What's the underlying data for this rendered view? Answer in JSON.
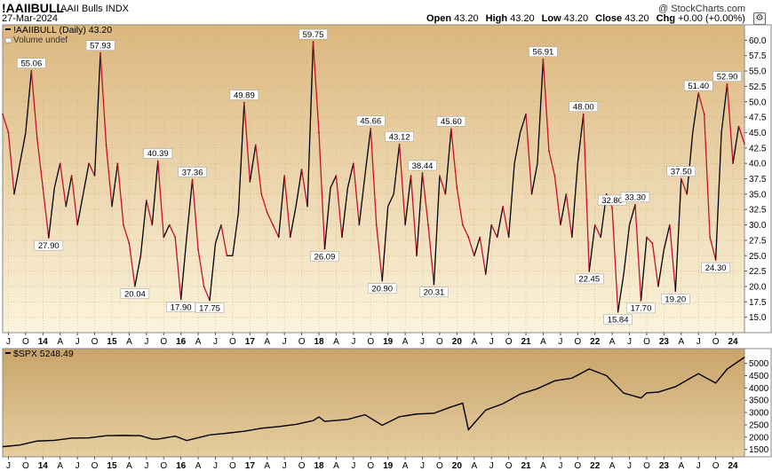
{
  "header": {
    "symbol": "!AAIIBULL",
    "description": "AAII Bulls INDX",
    "date": "27-Mar-2024",
    "copyright": "@ StockCharts.com",
    "ohlc": [
      {
        "key": "Open",
        "value": "43.20"
      },
      {
        "key": "High",
        "value": "43.20"
      },
      {
        "key": "Low",
        "value": "43.20"
      },
      {
        "key": "Close",
        "value": "43.20"
      },
      {
        "key": "Chg",
        "value": "+0.00 (+0.00%)"
      }
    ],
    "settings_icon": "gear-icon"
  },
  "chart_data": [
    {
      "type": "line",
      "legend": "!AAIIBULL (Daily) 43.20",
      "legend_volume": "Volume undef",
      "ylim": [
        12.5,
        62.5
      ],
      "y_ticks": [
        "15.0",
        "17.5",
        "20.0",
        "22.5",
        "25.0",
        "27.5",
        "30.0",
        "32.5",
        "35.0",
        "37.5",
        "40.0",
        "42.5",
        "45.0",
        "47.5",
        "50.0",
        "52.5",
        "55.0",
        "57.5",
        "60.0"
      ],
      "x_ticks": [
        "J",
        "O",
        "14",
        "A",
        "J",
        "O",
        "15",
        "A",
        "J",
        "O",
        "16",
        "A",
        "J",
        "O",
        "17",
        "A",
        "J",
        "O",
        "18",
        "A",
        "J",
        "O",
        "19",
        "A",
        "J",
        "O",
        "20",
        "A",
        "J",
        "O",
        "21",
        "A",
        "J",
        "O",
        "22",
        "A",
        "J",
        "O",
        "23",
        "A",
        "J",
        "O",
        "24"
      ],
      "x_range": [
        "2013-06",
        "2024-03"
      ],
      "background": [
        "#dcb77e",
        "#fbf4dc"
      ],
      "colors": {
        "up": "#000000",
        "down": "#c8102e"
      },
      "annotations": [
        {
          "x": "2013-11",
          "y": 55.06,
          "label": "55.06"
        },
        {
          "x": "2014-02",
          "y": 27.9,
          "label": "27.90"
        },
        {
          "x": "2014-11",
          "y": 57.93,
          "label": "57.93"
        },
        {
          "x": "2015-05",
          "y": 20.04,
          "label": "20.04"
        },
        {
          "x": "2015-09",
          "y": 40.39,
          "label": "40.39"
        },
        {
          "x": "2016-01",
          "y": 17.9,
          "label": "17.90"
        },
        {
          "x": "2016-03",
          "y": 37.36,
          "label": "37.36"
        },
        {
          "x": "2016-06",
          "y": 17.75,
          "label": "17.75"
        },
        {
          "x": "2016-12",
          "y": 49.89,
          "label": "49.89"
        },
        {
          "x": "2017-12",
          "y": 59.75,
          "label": "59.75"
        },
        {
          "x": "2018-02",
          "y": 26.09,
          "label": "26.09"
        },
        {
          "x": "2018-10",
          "y": 45.66,
          "label": "45.66"
        },
        {
          "x": "2018-12",
          "y": 20.9,
          "label": "20.90"
        },
        {
          "x": "2019-03",
          "y": 43.12,
          "label": "43.12"
        },
        {
          "x": "2019-07",
          "y": 38.44,
          "label": "38.44"
        },
        {
          "x": "2019-09",
          "y": 20.31,
          "label": "20.31"
        },
        {
          "x": "2019-12",
          "y": 45.6,
          "label": "45.60"
        },
        {
          "x": "2021-04",
          "y": 56.91,
          "label": "56.91"
        },
        {
          "x": "2021-11",
          "y": 48.0,
          "label": "48.00"
        },
        {
          "x": "2021-12",
          "y": 22.45,
          "label": "22.45"
        },
        {
          "x": "2022-04",
          "y": 32.8,
          "label": "32.80"
        },
        {
          "x": "2022-05",
          "y": 15.84,
          "label": "15.84"
        },
        {
          "x": "2022-08",
          "y": 33.3,
          "label": "33.30"
        },
        {
          "x": "2022-09",
          "y": 17.7,
          "label": "17.70"
        },
        {
          "x": "2023-03",
          "y": 19.2,
          "label": "19.20"
        },
        {
          "x": "2023-04",
          "y": 37.5,
          "label": "37.50"
        },
        {
          "x": "2023-07",
          "y": 51.4,
          "label": "51.40"
        },
        {
          "x": "2023-10",
          "y": 24.3,
          "label": "24.30"
        },
        {
          "x": "2023-12",
          "y": 52.9,
          "label": "52.90"
        }
      ],
      "series": [
        {
          "x": [
            "2013-06",
            "2013-07",
            "2013-08",
            "2013-09",
            "2013-10",
            "2013-11",
            "2013-12",
            "2014-01",
            "2014-02",
            "2014-03",
            "2014-04",
            "2014-05",
            "2014-06",
            "2014-07",
            "2014-08",
            "2014-09",
            "2014-10",
            "2014-11",
            "2014-12",
            "2015-01",
            "2015-02",
            "2015-03",
            "2015-04",
            "2015-05",
            "2015-06",
            "2015-07",
            "2015-08",
            "2015-09",
            "2015-10",
            "2015-11",
            "2015-12",
            "2016-01",
            "2016-02",
            "2016-03",
            "2016-04",
            "2016-05",
            "2016-06",
            "2016-07",
            "2016-08",
            "2016-09",
            "2016-10",
            "2016-11",
            "2016-12",
            "2017-01",
            "2017-02",
            "2017-03",
            "2017-04",
            "2017-05",
            "2017-06",
            "2017-07",
            "2017-08",
            "2017-09",
            "2017-10",
            "2017-11",
            "2017-12",
            "2018-01",
            "2018-02",
            "2018-03",
            "2018-04",
            "2018-05",
            "2018-06",
            "2018-07",
            "2018-08",
            "2018-09",
            "2018-10",
            "2018-11",
            "2018-12",
            "2019-01",
            "2019-02",
            "2019-03",
            "2019-04",
            "2019-05",
            "2019-06",
            "2019-07",
            "2019-08",
            "2019-09",
            "2019-10",
            "2019-11",
            "2019-12",
            "2020-01",
            "2020-02",
            "2020-03",
            "2020-04",
            "2020-05",
            "2020-06",
            "2020-07",
            "2020-08",
            "2020-09",
            "2020-10",
            "2020-11",
            "2020-12",
            "2021-01",
            "2021-02",
            "2021-03",
            "2021-04",
            "2021-05",
            "2021-06",
            "2021-07",
            "2021-08",
            "2021-09",
            "2021-10",
            "2021-11",
            "2021-12",
            "2022-01",
            "2022-02",
            "2022-03",
            "2022-04",
            "2022-05",
            "2022-06",
            "2022-07",
            "2022-08",
            "2022-09",
            "2022-10",
            "2022-11",
            "2022-12",
            "2023-01",
            "2023-02",
            "2023-03",
            "2023-04",
            "2023-05",
            "2023-06",
            "2023-07",
            "2023-08",
            "2023-09",
            "2023-10",
            "2023-11",
            "2023-12",
            "2024-01",
            "2024-02",
            "2024-03"
          ],
          "y": [
            48,
            45,
            35,
            40,
            45,
            55.06,
            44,
            36,
            27.9,
            36,
            40,
            33,
            38,
            30,
            35,
            40,
            38,
            57.93,
            43,
            33,
            40,
            30,
            27,
            20.04,
            25,
            34,
            30,
            40.39,
            28,
            30,
            28,
            17.9,
            28,
            37.36,
            26,
            20,
            17.75,
            27,
            30,
            25,
            25,
            32,
            49.89,
            37,
            43,
            35,
            32,
            30,
            28,
            38,
            28,
            33,
            39,
            33,
            59.75,
            45,
            26.09,
            36,
            38,
            28,
            36,
            40,
            30,
            38,
            45.66,
            30,
            20.9,
            33,
            35,
            43.12,
            30,
            38,
            25,
            38.44,
            30,
            20.31,
            38,
            35,
            45.6,
            36,
            30,
            28,
            25,
            28,
            22,
            30,
            28,
            33,
            28,
            40,
            45,
            48,
            35,
            40,
            56.91,
            42,
            38,
            30,
            35,
            28,
            40,
            48,
            22.45,
            30,
            28,
            35,
            32.8,
            15.84,
            22,
            30,
            33.3,
            17.7,
            28,
            27,
            20,
            26,
            30,
            19.2,
            37.5,
            35,
            45,
            51.4,
            48,
            28,
            24.3,
            45,
            52.9,
            40,
            46,
            43.2
          ]
        }
      ]
    },
    {
      "type": "line",
      "legend": "$SPX 5248.49",
      "ylim": [
        1200,
        5600
      ],
      "y_ticks": [
        "1500",
        "2000",
        "2500",
        "3000",
        "3500",
        "4000",
        "4500",
        "5000"
      ],
      "x_ticks": [
        "J",
        "O",
        "14",
        "A",
        "J",
        "O",
        "15",
        "A",
        "J",
        "O",
        "16",
        "A",
        "J",
        "O",
        "17",
        "A",
        "J",
        "O",
        "18",
        "A",
        "J",
        "O",
        "19",
        "A",
        "J",
        "O",
        "20",
        "A",
        "J",
        "O",
        "21",
        "A",
        "J",
        "O",
        "22",
        "A",
        "J",
        "O",
        "23",
        "A",
        "J",
        "O",
        "24"
      ],
      "x_range": [
        "2013-06",
        "2024-03"
      ],
      "background": [
        "#c9a46a",
        "#e6cea0"
      ],
      "colors": {
        "line": "#000000"
      },
      "series": [
        {
          "x": [
            "2013-06",
            "2013-09",
            "2013-12",
            "2014-03",
            "2014-06",
            "2014-09",
            "2014-12",
            "2015-03",
            "2015-06",
            "2015-08",
            "2015-09",
            "2015-12",
            "2016-02",
            "2016-06",
            "2016-09",
            "2016-12",
            "2017-03",
            "2017-06",
            "2017-09",
            "2017-12",
            "2018-01",
            "2018-02",
            "2018-06",
            "2018-09",
            "2018-12",
            "2019-03",
            "2019-06",
            "2019-09",
            "2019-12",
            "2020-02",
            "2020-03",
            "2020-06",
            "2020-09",
            "2020-12",
            "2021-03",
            "2021-06",
            "2021-09",
            "2021-12",
            "2022-03",
            "2022-06",
            "2022-09",
            "2022-10",
            "2022-12",
            "2023-03",
            "2023-06",
            "2023-07",
            "2023-10",
            "2023-12",
            "2024-03"
          ],
          "y": [
            1610,
            1680,
            1840,
            1870,
            1960,
            1970,
            2060,
            2070,
            2060,
            1920,
            1920,
            2040,
            1860,
            2090,
            2160,
            2240,
            2360,
            2430,
            2520,
            2670,
            2820,
            2640,
            2720,
            2910,
            2480,
            2830,
            2940,
            2970,
            3230,
            3380,
            2300,
            3100,
            3360,
            3750,
            3970,
            4290,
            4400,
            4770,
            4500,
            3790,
            3590,
            3800,
            3830,
            4050,
            4450,
            4580,
            4200,
            4770,
            5248.49
          ]
        }
      ]
    }
  ]
}
